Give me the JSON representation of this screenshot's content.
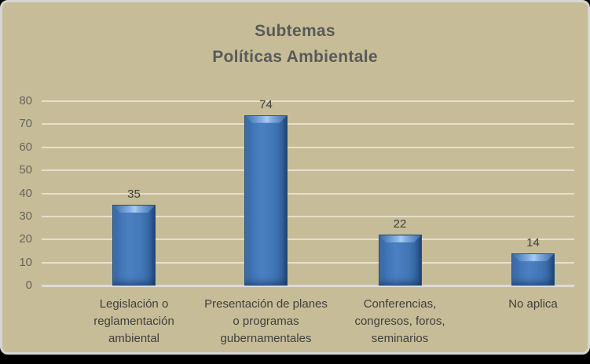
{
  "chart_data": {
    "type": "bar",
    "title_lines": [
      "Subtemas",
      "Políticas Ambientale"
    ],
    "categories": [
      "Legislación o reglamentación ambiental",
      "Presentación de planes o programas gubernamentales",
      "Conferencias, congresos, foros, seminarios",
      "No aplica"
    ],
    "values": [
      35,
      74,
      22,
      14
    ],
    "y_ticks": [
      80,
      70,
      60,
      50,
      40,
      30,
      20,
      10,
      0
    ],
    "ylim": [
      0,
      80
    ],
    "xlabel": "",
    "ylabel": "",
    "grid": true,
    "legend": "none"
  },
  "colors": {
    "background": "#C6BD98",
    "outer_background": "#000000",
    "frame_border": "#D5D5D5",
    "gridline": "#E9E5D6",
    "bar_fill": "#3F72B2",
    "bar_edge": "#26507F",
    "title_text": "#595959",
    "axis_text": "#67635A",
    "label_text": "#3F3F3C"
  }
}
